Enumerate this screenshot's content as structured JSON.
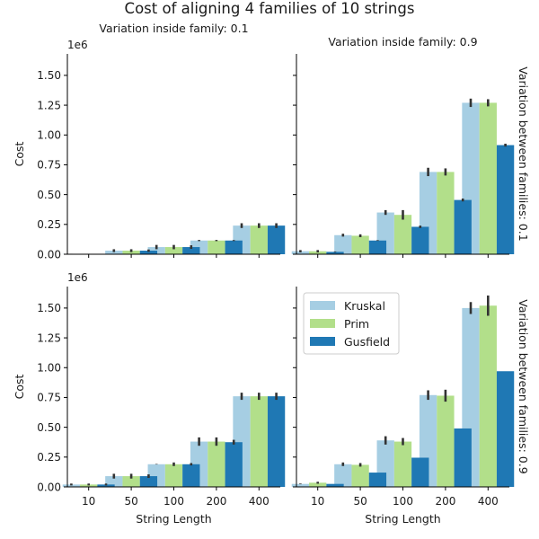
{
  "chart_data": {
    "type": "bar",
    "title": "Cost of aligning 4 families of 10 strings",
    "xlabel": "String Length",
    "ylabel": "Cost",
    "y_offset_text": "1e6",
    "categories": [
      "10",
      "50",
      "100",
      "200",
      "400"
    ],
    "yticks": [
      "0.00",
      "0.25",
      "0.50",
      "0.75",
      "1.00",
      "1.25",
      "1.50"
    ],
    "ylim": [
      0,
      1.68
    ],
    "y_scale": "x1e6",
    "legend": {
      "placement": "upper-left of bottom-right panel",
      "entries": [
        "Kruskal",
        "Prim",
        "Gusfield"
      ]
    },
    "colors": {
      "Kruskal": "#a6cee3",
      "Prim": "#b2df8a",
      "Gusfield": "#1f78b4",
      "error": "#333333"
    },
    "col_titles": [
      "Variation inside family: 0.1",
      "Variation inside family: 0.9"
    ],
    "row_titles": [
      "Variation between families: 0.1",
      "Variation between families: 0.9"
    ],
    "panels": [
      {
        "row": 0,
        "col": 0,
        "show_col_title": true,
        "show_row_title": false,
        "series": [
          {
            "name": "Kruskal",
            "values": [
              0.002,
              0.03,
              0.06,
              0.115,
              0.24
            ],
            "err": [
              0.002,
              0.012,
              0.018,
              0.005,
              0.02
            ]
          },
          {
            "name": "Prim",
            "values": [
              0.002,
              0.03,
              0.06,
              0.115,
              0.24
            ],
            "err": [
              0.002,
              0.012,
              0.018,
              0.005,
              0.02
            ]
          },
          {
            "name": "Gusfield",
            "values": [
              0.002,
              0.03,
              0.06,
              0.115,
              0.24
            ],
            "err": [
              0.001,
              0.01,
              0.015,
              0.004,
              0.02
            ]
          }
        ]
      },
      {
        "row": 0,
        "col": 1,
        "show_col_title": true,
        "show_row_title": true,
        "series": [
          {
            "name": "Kruskal",
            "values": [
              0.025,
              0.16,
              0.35,
              0.69,
              1.27
            ],
            "err": [
              0.01,
              0.012,
              0.02,
              0.035,
              0.035
            ]
          },
          {
            "name": "Prim",
            "values": [
              0.025,
              0.155,
              0.33,
              0.69,
              1.27
            ],
            "err": [
              0.01,
              0.012,
              0.04,
              0.03,
              0.03
            ]
          },
          {
            "name": "Gusfield",
            "values": [
              0.02,
              0.115,
              0.23,
              0.455,
              0.915
            ],
            "err": [
              0.003,
              0.003,
              0.01,
              0.012,
              0.012
            ]
          }
        ]
      },
      {
        "row": 1,
        "col": 0,
        "show_col_title": false,
        "show_row_title": false,
        "series": [
          {
            "name": "Kruskal",
            "values": [
              0.02,
              0.09,
              0.19,
              0.38,
              0.76
            ],
            "err": [
              0.008,
              0.02,
              0.002,
              0.035,
              0.03
            ]
          },
          {
            "name": "Prim",
            "values": [
              0.02,
              0.09,
              0.19,
              0.38,
              0.76
            ],
            "err": [
              0.008,
              0.02,
              0.015,
              0.035,
              0.03
            ]
          },
          {
            "name": "Gusfield",
            "values": [
              0.02,
              0.09,
              0.19,
              0.375,
              0.76
            ],
            "err": [
              0.008,
              0.015,
              0.01,
              0.02,
              0.03
            ]
          }
        ]
      },
      {
        "row": 1,
        "col": 1,
        "show_col_title": false,
        "show_row_title": true,
        "series": [
          {
            "name": "Kruskal",
            "values": [
              0.025,
              0.19,
              0.39,
              0.77,
              1.5
            ],
            "err": [
              0.003,
              0.015,
              0.035,
              0.04,
              0.05
            ]
          },
          {
            "name": "Prim",
            "values": [
              0.035,
              0.185,
              0.38,
              0.765,
              1.52
            ],
            "err": [
              0.008,
              0.015,
              0.03,
              0.05,
              0.085
            ]
          },
          {
            "name": "Gusfield",
            "values": [
              0.025,
              0.12,
              0.245,
              0.49,
              0.97
            ],
            "err": [
              0.0,
              0.0,
              0.0,
              0.0,
              0.0
            ]
          }
        ]
      }
    ]
  }
}
